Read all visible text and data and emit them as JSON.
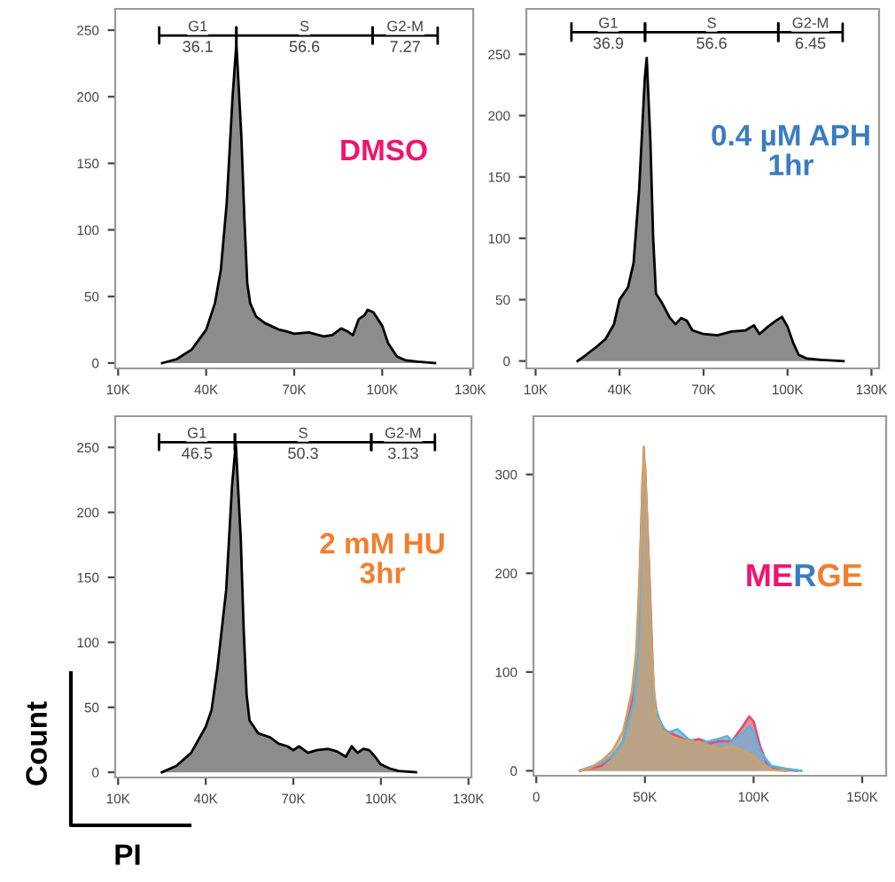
{
  "chart_data": [
    {
      "type": "area",
      "title": "DMSO",
      "xlim": [
        9000,
        131000
      ],
      "ylim": [
        -4,
        266
      ],
      "xticks": [
        {
          "value": 10000,
          "label": "10K"
        },
        {
          "value": 40000,
          "label": "40K"
        },
        {
          "value": 70000,
          "label": "70K"
        },
        {
          "value": 100000,
          "label": "100K"
        },
        {
          "value": 130000,
          "label": "130K"
        }
      ],
      "yticks": [
        0,
        50,
        100,
        150,
        200,
        250
      ],
      "annotations": [
        {
          "text": "36.1",
          "x": 37150,
          "y": 246
        },
        {
          "text": "56.6",
          "x": 73500,
          "y": 246
        },
        {
          "text": "7.27",
          "x": 107800,
          "y": 246
        }
      ],
      "series": [
        {
          "color": "#8c8c8c",
          "x": [
            25000,
            30000,
            35000,
            40000,
            43000,
            45000,
            47000,
            49000,
            50300,
            52000,
            53000,
            54000,
            55000,
            57000,
            60000,
            62000,
            65000,
            67000,
            70000,
            75000,
            80000,
            83000,
            86000,
            88000,
            90000,
            92000,
            94000,
            95000,
            97000,
            100000,
            102000,
            105000,
            108000,
            112000,
            118000
          ],
          "values": [
            0,
            3,
            10,
            25,
            45,
            70,
            120,
            200,
            240,
            170,
            110,
            60,
            45,
            35,
            30,
            28,
            25,
            24,
            22,
            23,
            20,
            21,
            26,
            24,
            21,
            33,
            36,
            40,
            38,
            28,
            15,
            5,
            2,
            1,
            0
          ]
        },
        {
          "type": "line",
          "name": "G1",
          "color": "#000000",
          "x": [
            24000,
            24000,
            24000,
            50300,
            50300,
            50300
          ],
          "values": [
            252,
            240,
            246,
            246,
            252,
            240
          ]
        },
        {
          "type": "line",
          "name": "S",
          "color": "#000000",
          "x": [
            50300,
            50300,
            50300,
            96700,
            96700,
            96700
          ],
          "values": [
            252,
            240,
            246,
            246,
            252,
            240
          ]
        },
        {
          "type": "line",
          "name": "G2-M",
          "color": "#000000",
          "x": [
            96700,
            96700,
            96700,
            118900,
            118900,
            118900
          ],
          "values": [
            252,
            240,
            246,
            246,
            252,
            240
          ]
        }
      ]
    },
    {
      "type": "area",
      "title": "0.4 µM APH\n1hr",
      "xlim": [
        6700,
        132700
      ],
      "ylim": [
        -6,
        287
      ],
      "xticks": [
        {
          "value": 10000,
          "label": "10K"
        },
        {
          "value": 40000,
          "label": "40K"
        },
        {
          "value": 70000,
          "label": "70K"
        },
        {
          "value": 100000,
          "label": "100K"
        },
        {
          "value": 130000,
          "label": "130K"
        }
      ],
      "yticks": [
        0,
        50,
        100,
        150,
        200,
        250
      ],
      "annotations": [
        {
          "text": "36.9",
          "x": 35950,
          "y": 268
        },
        {
          "text": "56.6",
          "x": 72900,
          "y": 268
        },
        {
          "text": "6.45",
          "x": 108200,
          "y": 268
        }
      ],
      "series": [
        {
          "color": "#8c8c8c",
          "x": [
            25000,
            28000,
            32000,
            35000,
            38000,
            40000,
            43000,
            45000,
            47000,
            49000,
            49700,
            51000,
            52000,
            53000,
            55000,
            58000,
            60000,
            62000,
            64000,
            66000,
            70000,
            75000,
            80000,
            85000,
            88000,
            90000,
            93000,
            96000,
            98000,
            100000,
            102000,
            104000,
            107000,
            112000,
            120000
          ],
          "values": [
            0,
            5,
            12,
            18,
            30,
            50,
            60,
            80,
            140,
            230,
            247,
            180,
            100,
            55,
            48,
            35,
            30,
            35,
            33,
            25,
            22,
            21,
            24,
            25,
            29,
            22,
            28,
            33,
            36,
            28,
            15,
            5,
            2,
            1,
            0
          ]
        },
        {
          "type": "line",
          "name": "G1",
          "color": "#000000",
          "x": [
            22800,
            22800,
            22800,
            49100,
            49100,
            49100
          ],
          "values": [
            275,
            261,
            268,
            268,
            275,
            261
          ]
        },
        {
          "type": "line",
          "name": "S",
          "color": "#000000",
          "x": [
            49100,
            49100,
            49100,
            96700,
            96700,
            96700
          ],
          "values": [
            275,
            261,
            268,
            268,
            275,
            261
          ]
        },
        {
          "type": "line",
          "name": "G2-M",
          "color": "#000000",
          "x": [
            96700,
            96700,
            96700,
            119700,
            119700,
            119700
          ],
          "values": [
            275,
            261,
            268,
            268,
            275,
            261
          ]
        }
      ]
    },
    {
      "type": "area",
      "title": "2 mM HU\n3hr",
      "xlabel": "PI",
      "ylabel": "Count",
      "xlim": [
        9000,
        131000
      ],
      "ylim": [
        -4,
        274
      ],
      "xticks": [
        {
          "value": 10000,
          "label": "10K"
        },
        {
          "value": 40000,
          "label": "40K"
        },
        {
          "value": 70000,
          "label": "70K"
        },
        {
          "value": 100000,
          "label": "100K"
        },
        {
          "value": 130000,
          "label": "130K"
        }
      ],
      "yticks": [
        0,
        50,
        100,
        150,
        200,
        250
      ],
      "annotations": [
        {
          "text": "46.5",
          "x": 37000,
          "y": 254
        },
        {
          "text": "50.3",
          "x": 73350,
          "y": 254
        },
        {
          "text": "3.13",
          "x": 107600,
          "y": 254
        }
      ],
      "series": [
        {
          "color": "#8c8c8c",
          "x": [
            25000,
            30000,
            35000,
            40000,
            42000,
            44000,
            45000,
            47000,
            49000,
            50300,
            52000,
            53000,
            54000,
            55000,
            58000,
            62000,
            65000,
            68000,
            70000,
            72000,
            75000,
            78000,
            82000,
            85000,
            88000,
            90000,
            92000,
            94000,
            96000,
            98000,
            100000,
            103000,
            106000,
            112000
          ],
          "values": [
            0,
            5,
            15,
            35,
            48,
            80,
            100,
            140,
            220,
            253,
            180,
            110,
            60,
            40,
            30,
            27,
            22,
            20,
            17,
            20,
            15,
            17,
            18,
            16,
            12,
            20,
            15,
            18,
            17,
            12,
            6,
            3,
            1,
            0
          ]
        },
        {
          "type": "line",
          "name": "G1",
          "color": "#000000",
          "x": [
            24000,
            24000,
            24000,
            50000,
            50000,
            50000
          ],
          "values": [
            260,
            248,
            254,
            254,
            260,
            248
          ]
        },
        {
          "type": "line",
          "name": "S",
          "color": "#000000",
          "x": [
            50000,
            50000,
            50000,
            96700,
            96700,
            96700
          ],
          "values": [
            260,
            248,
            254,
            254,
            260,
            248
          ]
        },
        {
          "type": "line",
          "name": "G2-M",
          "color": "#000000",
          "x": [
            96700,
            96700,
            96700,
            118500,
            118500,
            118500
          ],
          "values": [
            260,
            248,
            254,
            254,
            260,
            248
          ]
        }
      ]
    },
    {
      "type": "area",
      "title": "MERGE",
      "xlim": [
        -1300,
        161000
      ],
      "ylim": [
        -5,
        359
      ],
      "xticks": [
        0,
        {
          "value": 50000,
          "label": "50K"
        },
        {
          "value": 100000,
          "label": "100K"
        },
        {
          "value": 150000,
          "label": "150K"
        }
      ],
      "yticks": [
        0,
        100,
        200,
        300
      ],
      "series": [
        {
          "color": "#e0506e",
          "x": [
            20000,
            30000,
            35000,
            40000,
            45000,
            47000,
            49000,
            50000,
            52000,
            54000,
            56000,
            60000,
            65000,
            70000,
            75000,
            80000,
            85000,
            90000,
            95000,
            98000,
            100000,
            103000,
            106000,
            110000,
            120000
          ],
          "values": [
            0,
            5,
            15,
            30,
            80,
            150,
            300,
            310,
            200,
            80,
            50,
            40,
            35,
            30,
            32,
            28,
            30,
            30,
            45,
            55,
            50,
            25,
            8,
            2,
            0
          ]
        },
        {
          "color": "#5ab4dc",
          "x": [
            20000,
            30000,
            35000,
            40000,
            45000,
            47000,
            49000,
            50000,
            52000,
            54000,
            57000,
            60000,
            65000,
            67000,
            70000,
            75000,
            80000,
            85000,
            88000,
            90000,
            95000,
            98000,
            100000,
            103000,
            108000,
            115000,
            122000
          ],
          "values": [
            0,
            8,
            15,
            30,
            70,
            130,
            280,
            300,
            190,
            70,
            50,
            38,
            42,
            38,
            32,
            28,
            30,
            33,
            35,
            30,
            38,
            45,
            40,
            20,
            5,
            2,
            0
          ]
        },
        {
          "color": "#d2a064",
          "x": [
            20000,
            25000,
            30000,
            35000,
            40000,
            44000,
            46000,
            48000,
            49500,
            51000,
            53000,
            55000,
            58000,
            62000,
            66000,
            70000,
            75000,
            80000,
            85000,
            90000,
            95000,
            100000,
            104000,
            108000,
            115000
          ],
          "values": [
            0,
            3,
            10,
            20,
            40,
            80,
            120,
            220,
            328,
            250,
            120,
            55,
            40,
            35,
            32,
            30,
            28,
            25,
            22,
            25,
            20,
            15,
            5,
            1,
            0
          ]
        }
      ]
    }
  ]
}
